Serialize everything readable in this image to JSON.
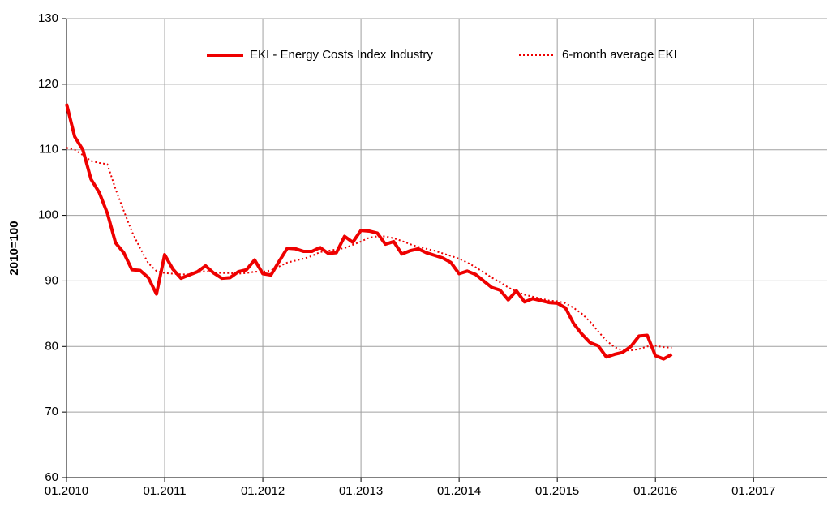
{
  "chart_data": {
    "type": "line",
    "y_label": "2010=100",
    "x": [
      "01.2010",
      "02.2010",
      "03.2010",
      "04.2010",
      "05.2010",
      "06.2010",
      "07.2010",
      "08.2010",
      "09.2010",
      "10.2010",
      "11.2010",
      "12.2010",
      "01.2011",
      "02.2011",
      "03.2011",
      "04.2011",
      "05.2011",
      "06.2011",
      "07.2011",
      "08.2011",
      "09.2011",
      "10.2011",
      "11.2011",
      "12.2011",
      "01.2012",
      "02.2012",
      "03.2012",
      "04.2012",
      "05.2012",
      "06.2012",
      "07.2012",
      "08.2012",
      "09.2012",
      "10.2012",
      "11.2012",
      "12.2012",
      "01.2013",
      "02.2013",
      "03.2013",
      "04.2013",
      "05.2013",
      "06.2013",
      "07.2013",
      "08.2013",
      "09.2013",
      "10.2013",
      "11.2013",
      "12.2013",
      "01.2014",
      "02.2014",
      "03.2014",
      "04.2014",
      "05.2014",
      "06.2014",
      "07.2014",
      "08.2014",
      "09.2014",
      "10.2014",
      "11.2014",
      "12.2014",
      "01.2015",
      "02.2015",
      "03.2015",
      "04.2015",
      "05.2015",
      "06.2015",
      "07.2015",
      "08.2015",
      "09.2015",
      "10.2015",
      "11.2015",
      "12.2015",
      "01.2016",
      "02.2016",
      "03.2016"
    ],
    "series": [
      {
        "name": "EKI - Energy Costs Index Industry",
        "color": "#ee0000",
        "style": "solid",
        "values": [
          117,
          112,
          110,
          105.5,
          103.5,
          100.3,
          95.8,
          94.3,
          91.7,
          91.6,
          90.5,
          88,
          94,
          91.8,
          90.4,
          90.9,
          91.4,
          92.3,
          91.2,
          90.4,
          90.5,
          91.4,
          91.7,
          93.2,
          91.1,
          90.9,
          93,
          95,
          94.9,
          94.5,
          94.5,
          95.1,
          94.2,
          94.3,
          96.8,
          95.9,
          97.7,
          97.6,
          97.3,
          95.6,
          96,
          94.1,
          94.6,
          94.9,
          94.3,
          93.9,
          93.5,
          92.8,
          91.1,
          91.5,
          91,
          90,
          89,
          88.6,
          87.1,
          88.5,
          86.8,
          87.3,
          87,
          86.7,
          86.6,
          85.9,
          83.5,
          81.9,
          80.6,
          80.1,
          78.4,
          78.8,
          79.1,
          80,
          81.6,
          81.7,
          78.6,
          78.1,
          78.8
        ]
      },
      {
        "name": "6-month average EKI",
        "color": "#ee0000",
        "style": "dotted",
        "values": [
          110.3,
          110,
          109.2,
          108.3,
          108,
          107.8,
          104,
          100.7,
          97.5,
          95,
          92.7,
          91.5,
          91.2,
          91.1,
          91,
          91,
          91.3,
          91.5,
          91.3,
          91.2,
          91.2,
          91.1,
          91.2,
          91.4,
          91.4,
          91.6,
          92.2,
          92.8,
          93.1,
          93.4,
          93.8,
          94.4,
          94.6,
          94.8,
          95,
          95.5,
          96,
          96.6,
          96.8,
          96.8,
          96.5,
          96.1,
          95.6,
          95.2,
          94.9,
          94.6,
          94.2,
          93.8,
          93.4,
          92.8,
          92.1,
          91.3,
          90.5,
          89.8,
          89,
          88.4,
          87.9,
          87.6,
          87.3,
          87,
          86.9,
          86.6,
          85.9,
          85,
          83.8,
          82.3,
          80.9,
          79.9,
          79.4,
          79.4,
          79.6,
          80,
          80.1,
          79.9,
          79.8
        ]
      }
    ],
    "xlim": [
      "01.2010",
      "10.2017"
    ],
    "xticks": [
      "01.2010",
      "01.2011",
      "01.2012",
      "01.2013",
      "01.2014",
      "01.2015",
      "01.2016",
      "01.2017"
    ],
    "ylim": [
      60,
      130
    ],
    "yticks": [
      60,
      70,
      80,
      90,
      100,
      110,
      120,
      130
    ],
    "grid": true,
    "legend": "top"
  }
}
